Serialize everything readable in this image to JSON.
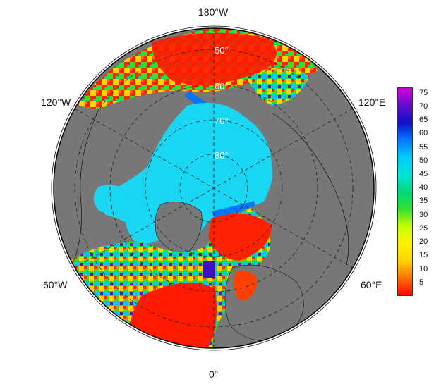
{
  "map": {
    "longitude_labels": {
      "top": "180°W",
      "bottom": "0°",
      "upper_left": "120°W",
      "upper_right": "120°E",
      "lower_left": "60°W",
      "lower_right": "60°E"
    },
    "latitude_labels": [
      "50°",
      "60°",
      "70°",
      "80°"
    ],
    "colors": {
      "land": "#777777",
      "ocean_outside": "#ffffff",
      "sea_ice": "#19d7f3",
      "graticule": "#222222"
    }
  },
  "colorbar": {
    "ticks": [
      "75",
      "70",
      "65",
      "60",
      "55",
      "50",
      "45",
      "40",
      "35",
      "30",
      "25",
      "20",
      "15",
      "10",
      "5"
    ],
    "min": 0,
    "max": 77,
    "scale_colors": [
      "#ff0000",
      "#ff6a00",
      "#ffd400",
      "#fff200",
      "#c8ff00",
      "#2fe02f",
      "#00d97a",
      "#00e5d5",
      "#00c8ff",
      "#0076ff",
      "#1010c8",
      "#6a0ad0",
      "#e000e0"
    ]
  }
}
